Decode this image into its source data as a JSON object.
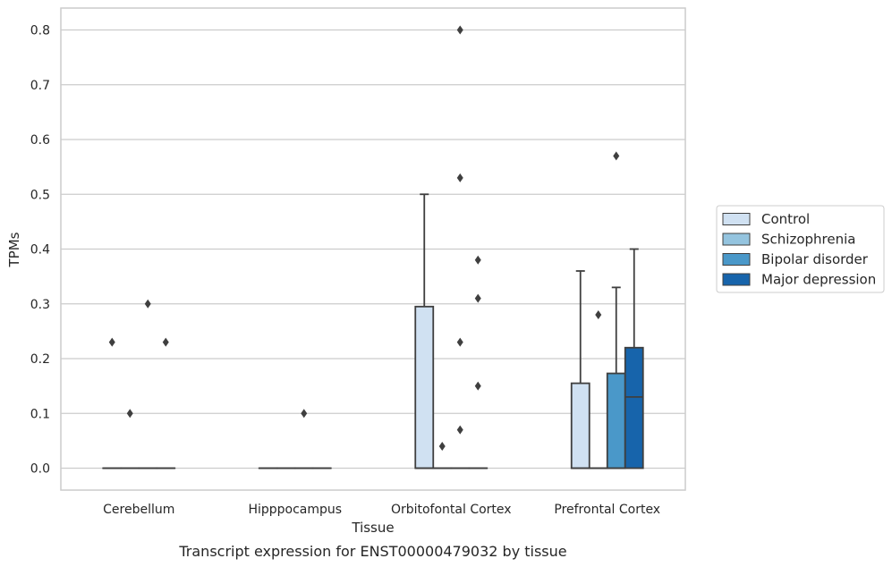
{
  "caption": "Transcript expression for ENST00000479032 by tissue",
  "chart_data": {
    "type": "box",
    "xlabel": "Tissue",
    "ylabel": "TPMs",
    "ylim": [
      -0.04,
      0.84
    ],
    "yticks": [
      "0.0",
      "0.1",
      "0.2",
      "0.3",
      "0.4",
      "0.5",
      "0.6",
      "0.7",
      "0.8"
    ],
    "grid": "horizontal",
    "legend_position": "right, outside plot",
    "categories": [
      "Cerebellum",
      "Hipppocampus",
      "Orbitofontal Cortex",
      "Prefrontal Cortex"
    ],
    "series": [
      {
        "name": "Control",
        "color": "#d0e1f2",
        "boxes": [
          {
            "category": "Cerebellum",
            "q1": 0,
            "median": 0,
            "q3": 0,
            "whisker_low": 0,
            "whisker_high": 0,
            "outliers": [
              0.23
            ]
          },
          {
            "category": "Hipppocampus",
            "q1": 0,
            "median": 0,
            "q3": 0,
            "whisker_low": 0,
            "whisker_high": 0,
            "outliers": []
          },
          {
            "category": "Orbitofontal Cortex",
            "q1": 0,
            "median": 0,
            "q3": 0.295,
            "whisker_low": 0,
            "whisker_high": 0.5,
            "outliers": []
          },
          {
            "category": "Prefrontal Cortex",
            "q1": 0,
            "median": 0,
            "q3": 0.155,
            "whisker_low": 0,
            "whisker_high": 0.36,
            "outliers": []
          }
        ]
      },
      {
        "name": "Schizophrenia",
        "color": "#94c4df",
        "boxes": [
          {
            "category": "Cerebellum",
            "q1": 0,
            "median": 0,
            "q3": 0,
            "whisker_low": 0,
            "whisker_high": 0,
            "outliers": [
              0.1
            ]
          },
          {
            "category": "Hipppocampus",
            "q1": 0,
            "median": 0,
            "q3": 0,
            "whisker_low": 0,
            "whisker_high": 0,
            "outliers": []
          },
          {
            "category": "Orbitofontal Cortex",
            "q1": 0,
            "median": 0,
            "q3": 0,
            "whisker_low": 0,
            "whisker_high": 0,
            "outliers": [
              0.04
            ]
          },
          {
            "category": "Prefrontal Cortex",
            "q1": 0,
            "median": 0,
            "q3": 0,
            "whisker_low": 0,
            "whisker_high": 0,
            "outliers": [
              0.28
            ]
          }
        ]
      },
      {
        "name": "Bipolar disorder",
        "color": "#4a98c9",
        "boxes": [
          {
            "category": "Cerebellum",
            "q1": 0,
            "median": 0,
            "q3": 0,
            "whisker_low": 0,
            "whisker_high": 0,
            "outliers": [
              0.3
            ]
          },
          {
            "category": "Hipppocampus",
            "q1": 0,
            "median": 0,
            "q3": 0,
            "whisker_low": 0,
            "whisker_high": 0,
            "outliers": [
              0.1
            ]
          },
          {
            "category": "Orbitofontal Cortex",
            "q1": 0,
            "median": 0,
            "q3": 0,
            "whisker_low": 0,
            "whisker_high": 0,
            "outliers": [
              0.8,
              0.53,
              0.23,
              0.07
            ]
          },
          {
            "category": "Prefrontal Cortex",
            "q1": 0,
            "median": 0,
            "q3": 0.173,
            "whisker_low": 0,
            "whisker_high": 0.33,
            "outliers": [
              0.57
            ]
          }
        ]
      },
      {
        "name": "Major depression",
        "color": "#1764ab",
        "boxes": [
          {
            "category": "Cerebellum",
            "q1": 0,
            "median": 0,
            "q3": 0,
            "whisker_low": 0,
            "whisker_high": 0,
            "outliers": [
              0.23
            ]
          },
          {
            "category": "Hipppocampus",
            "q1": 0,
            "median": 0,
            "q3": 0,
            "whisker_low": 0,
            "whisker_high": 0,
            "outliers": []
          },
          {
            "category": "Orbitofontal Cortex",
            "q1": 0,
            "median": 0,
            "q3": 0,
            "whisker_low": 0,
            "whisker_high": 0,
            "outliers": [
              0.38,
              0.31,
              0.15
            ]
          },
          {
            "category": "Prefrontal Cortex",
            "q1": 0,
            "median": 0.13,
            "q3": 0.22,
            "whisker_low": 0,
            "whisker_high": 0.4,
            "outliers": []
          }
        ]
      }
    ]
  }
}
